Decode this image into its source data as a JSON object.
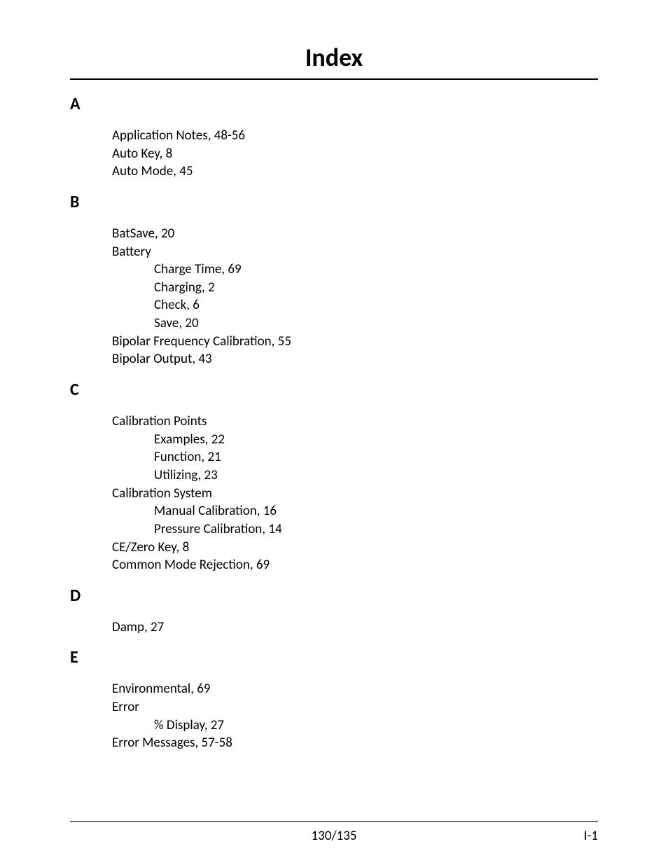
{
  "title": "Index",
  "sections": [
    {
      "letter": "A",
      "entries": [
        {
          "text": "Application Notes, 48-56"
        },
        {
          "text": "Auto Key, 8"
        },
        {
          "text": "Auto Mode, 45"
        }
      ]
    },
    {
      "letter": "B",
      "entries": [
        {
          "text": "BatSave, 20"
        },
        {
          "text": "Battery",
          "children": [
            {
              "text": "Charge Time, 69"
            },
            {
              "text": "Charging, 2"
            },
            {
              "text": "Check, 6"
            },
            {
              "text": "Save, 20"
            }
          ]
        },
        {
          "text": "Bipolar Frequency Calibration, 55"
        },
        {
          "text": "Bipolar Output, 43"
        }
      ]
    },
    {
      "letter": "C",
      "entries": [
        {
          "text": "Calibration Points",
          "children": [
            {
              "text": "Examples, 22"
            },
            {
              "text": "Function, 21"
            },
            {
              "text": "Utilizing, 23"
            }
          ]
        },
        {
          "text": "Calibration System",
          "children": [
            {
              "text": "Manual Calibration, 16"
            },
            {
              "text": "Pressure Calibration, 14"
            }
          ]
        },
        {
          "text": "CE/Zero Key, 8"
        },
        {
          "text": "Common Mode Rejection, 69"
        }
      ]
    },
    {
      "letter": "D",
      "entries": [
        {
          "text": "Damp, 27"
        }
      ]
    },
    {
      "letter": "E",
      "entries": [
        {
          "text": "Environmental, 69"
        },
        {
          "text": "Error",
          "children": [
            {
              "text": "% Display, 27"
            }
          ]
        },
        {
          "text": "Error Messages, 57-58"
        }
      ]
    }
  ],
  "footer": {
    "center": "130/135",
    "right": "I-1"
  },
  "styles": {
    "background_color": "#ffffff",
    "text_color": "#000000",
    "title_fontsize": 36,
    "section_letter_fontsize": 24,
    "entry_fontsize": 19,
    "footer_fontsize": 19,
    "rule_color": "#000000"
  }
}
